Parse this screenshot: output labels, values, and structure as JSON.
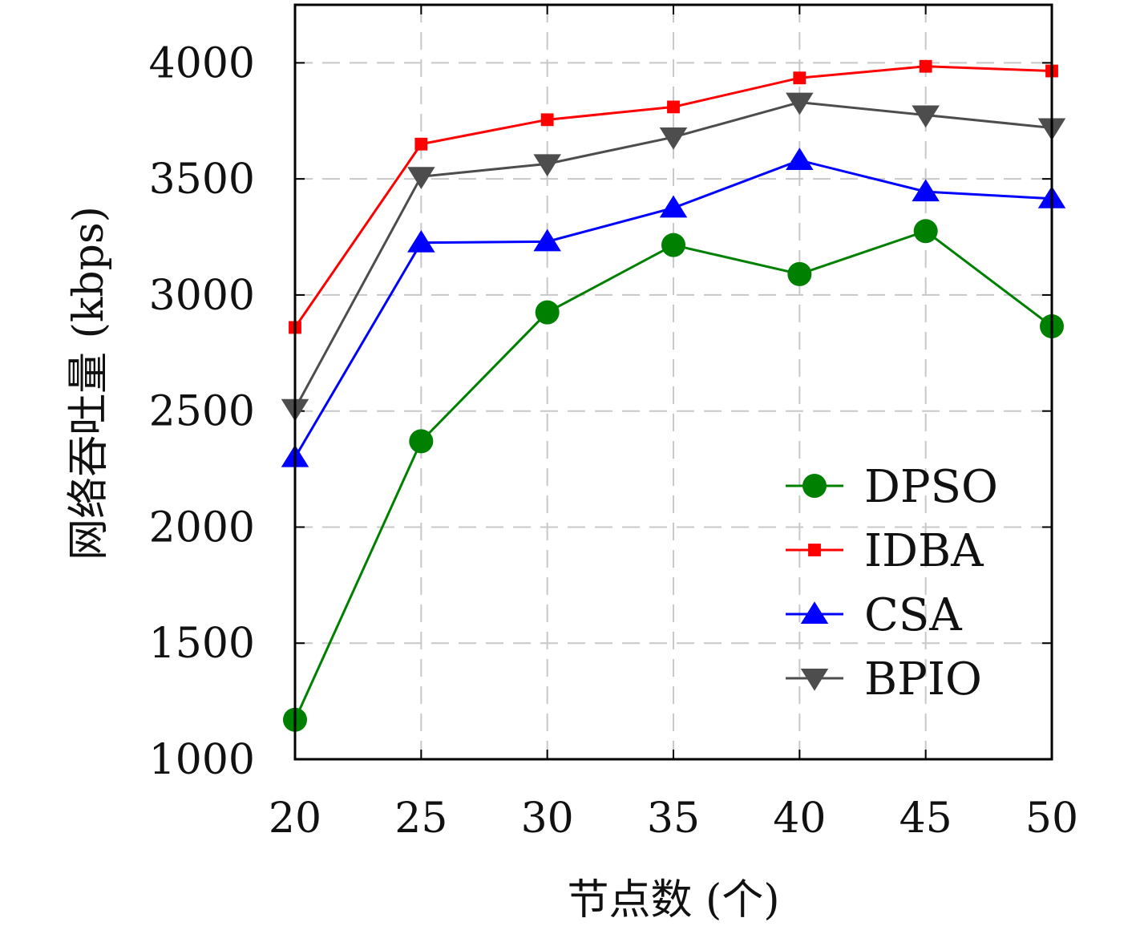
{
  "chart_data": {
    "type": "line",
    "title": "",
    "xlabel": "节点数 (个)",
    "ylabel": "网络吞吐量 (kbps)",
    "x": [
      20,
      25,
      30,
      35,
      40,
      45,
      50
    ],
    "xticks": [
      "20",
      "25",
      "30",
      "35",
      "40",
      "45",
      "50"
    ],
    "yticks": [
      "1000",
      "1500",
      "2000",
      "2500",
      "3000",
      "3500",
      "4000"
    ],
    "xlim": [
      20,
      50
    ],
    "ylim": [
      1000,
      4250
    ],
    "grid": true,
    "legend_position": "lower-right",
    "series": [
      {
        "name": "DPSO",
        "color": "#008000",
        "marker": "circle",
        "values": [
          1170,
          2370,
          2925,
          3215,
          3090,
          3275,
          2865
        ]
      },
      {
        "name": "IDBA",
        "color": "#ff0000",
        "marker": "square",
        "values": [
          2860,
          3650,
          3755,
          3810,
          3935,
          3985,
          3965
        ]
      },
      {
        "name": "CSA",
        "color": "#0000ff",
        "marker": "triangle-up",
        "values": [
          2300,
          3225,
          3230,
          3375,
          3580,
          3445,
          3415
        ]
      },
      {
        "name": "BPIO",
        "color": "#4d4d4d",
        "marker": "triangle-down",
        "values": [
          2510,
          3510,
          3565,
          3680,
          3830,
          3775,
          3720
        ]
      }
    ]
  }
}
